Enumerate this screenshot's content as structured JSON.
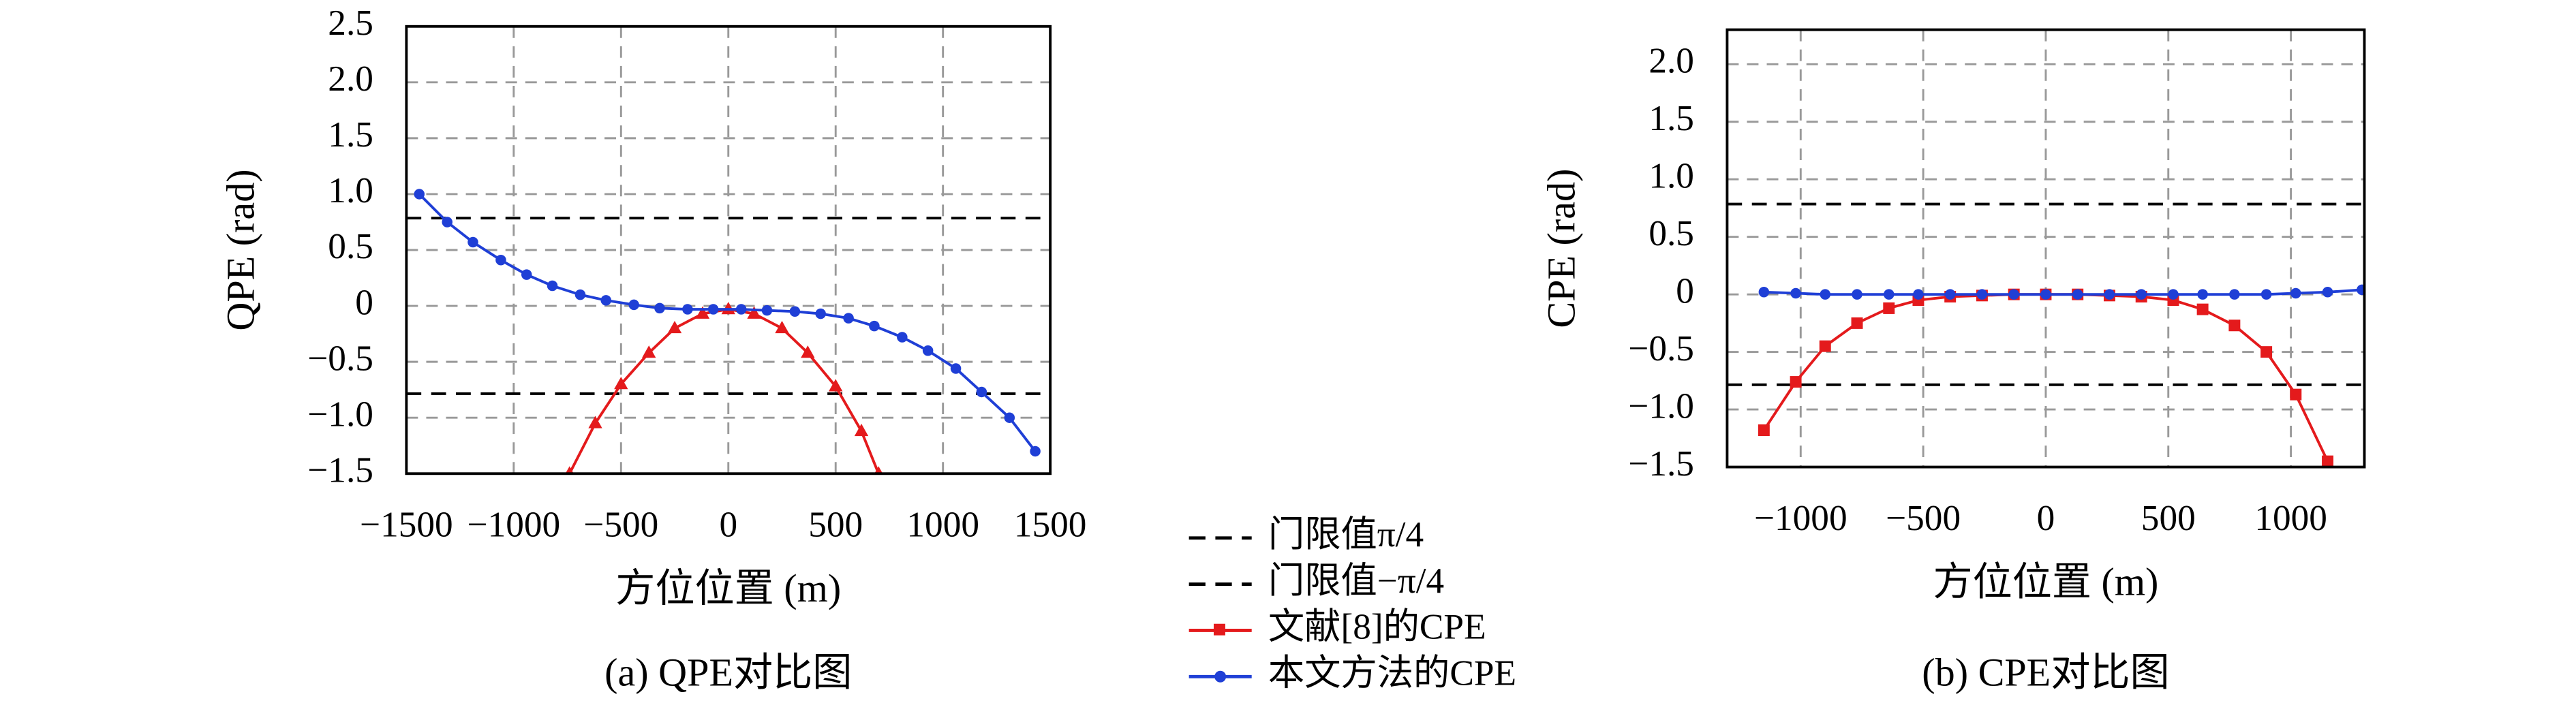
{
  "chart_data": [
    {
      "type": "line",
      "caption": "(a) QPE对比图",
      "xlabel": "方位位置 (m)",
      "ylabel": "QPE (rad)",
      "xlim": [
        -1500,
        1500
      ],
      "ylim": [
        -1.5,
        2.5
      ],
      "grid": true,
      "xticks": [
        {
          "value": -1500,
          "label": "−1500"
        },
        {
          "value": -1000,
          "label": "−1000"
        },
        {
          "value": -500,
          "label": "−500"
        },
        0,
        500,
        1000,
        1500
      ],
      "yticks": [
        {
          "value": -1.5,
          "label": "−1.5"
        },
        {
          "value": -1,
          "label": "−1.0"
        },
        {
          "value": -0.5,
          "label": "−0.5"
        },
        0,
        0.5,
        {
          "value": 1,
          "label": "1.0"
        },
        1.5,
        {
          "value": 2,
          "label": "2.0"
        },
        2.5
      ],
      "hlines": [
        {
          "name": "门限值π/4",
          "value": 0.785,
          "color": "#000000"
        },
        {
          "name": "门限值−π/4",
          "value": -0.785,
          "color": "#000000"
        }
      ],
      "series": [
        {
          "name": "文献[8]的CPE",
          "color": "#e41a1c",
          "marker": "triangle",
          "x": [
            -740,
            -620,
            -500,
            -370,
            -250,
            -120,
            0,
            120,
            250,
            370,
            500,
            620,
            700
          ],
          "values": [
            -1.5,
            -1.05,
            -0.7,
            -0.42,
            -0.2,
            -0.07,
            -0.03,
            -0.07,
            -0.2,
            -0.42,
            -0.72,
            -1.12,
            -1.5
          ]
        },
        {
          "name": "本文方法的CPE",
          "color": "#1f3fd6",
          "marker": "circle",
          "x": [
            -1440,
            -1310,
            -1190,
            -1060,
            -940,
            -820,
            -690,
            -570,
            -440,
            -320,
            -190,
            -70,
            60,
            180,
            310,
            430,
            560,
            680,
            810,
            930,
            1060,
            1180,
            1310,
            1430
          ],
          "values": [
            1.0,
            0.75,
            0.57,
            0.41,
            0.28,
            0.18,
            0.1,
            0.05,
            0.01,
            -0.02,
            -0.03,
            -0.03,
            -0.03,
            -0.04,
            -0.05,
            -0.07,
            -0.11,
            -0.18,
            -0.28,
            -0.4,
            -0.56,
            -0.77,
            -1.0,
            -1.3
          ]
        }
      ]
    },
    {
      "type": "line",
      "caption": "(b) CPE对比图",
      "xlabel": "方位位置 (m)",
      "ylabel": "CPE (rad)",
      "xlim": [
        -1300,
        1300
      ],
      "ylim": [
        -1.5,
        2.3
      ],
      "grid": true,
      "xticks": [
        {
          "value": -1000,
          "label": "−1000"
        },
        {
          "value": -500,
          "label": "−500"
        },
        0,
        500,
        1000
      ],
      "yticks": [
        {
          "value": -1.5,
          "label": "−1.5"
        },
        {
          "value": -1,
          "label": "−1.0"
        },
        {
          "value": -0.5,
          "label": "−0.5"
        },
        0,
        0.5,
        {
          "value": 1,
          "label": "1.0"
        },
        1.5,
        {
          "value": 2,
          "label": "2.0"
        }
      ],
      "hlines": [
        {
          "name": "门限值π/4",
          "value": 0.785,
          "color": "#000000"
        },
        {
          "name": "门限值−π/4",
          "value": -0.785,
          "color": "#000000"
        }
      ],
      "series": [
        {
          "name": "文献[8]的CPE",
          "color": "#e41a1c",
          "marker": "square",
          "x": [
            -1150,
            -1020,
            -900,
            -770,
            -640,
            -520,
            -390,
            -260,
            -130,
            0,
            130,
            260,
            390,
            520,
            640,
            770,
            900,
            1020,
            1150
          ],
          "values": [
            -1.18,
            -0.76,
            -0.45,
            -0.25,
            -0.12,
            -0.05,
            -0.02,
            -0.01,
            0,
            0,
            0,
            -0.01,
            -0.02,
            -0.05,
            -0.13,
            -0.27,
            -0.5,
            -0.87,
            -1.45
          ]
        },
        {
          "name": "本文方法的CPE",
          "color": "#1f3fd6",
          "marker": "circle",
          "x": [
            -1150,
            -1020,
            -900,
            -770,
            -640,
            -520,
            -390,
            -260,
            -130,
            0,
            130,
            260,
            390,
            520,
            640,
            770,
            900,
            1020,
            1150,
            1290
          ],
          "values": [
            0.02,
            0.01,
            0,
            0,
            0,
            0,
            0,
            0,
            0,
            0,
            0,
            0,
            0,
            0,
            0,
            0,
            0,
            0.01,
            0.02,
            0.04
          ]
        }
      ]
    }
  ]
}
